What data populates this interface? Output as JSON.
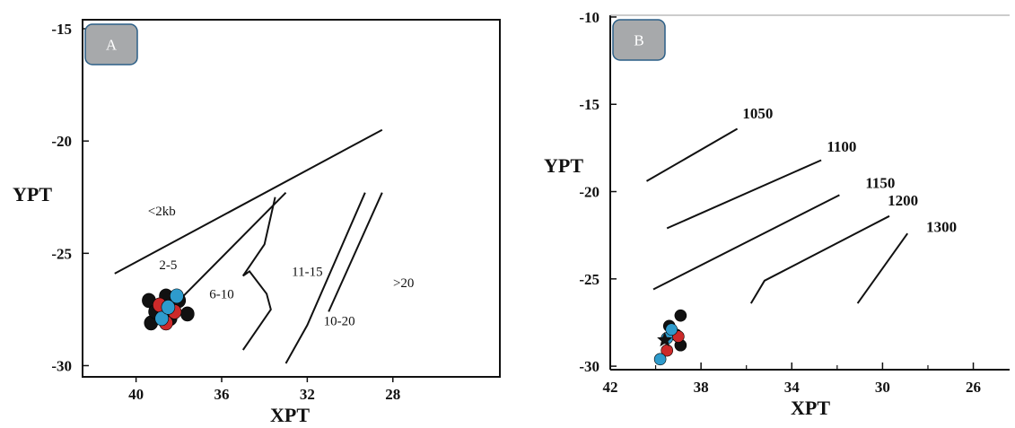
{
  "chart_data": [
    {
      "type": "scatter",
      "panel": "A",
      "xlabel": "XPT",
      "ylabel": "YPT",
      "xlim": [
        42.5,
        23
      ],
      "ylim": [
        -30.5,
        -14.6
      ],
      "x_ticks": [
        "40",
        "36",
        "32",
        "28"
      ],
      "y_ticks": [
        "-15",
        "-20",
        "-25",
        "-30"
      ],
      "field_lines": [
        {
          "points": [
            [
              41,
              -25.9
            ],
            [
              28.5,
              -19.5
            ]
          ]
        },
        {
          "points": [
            [
              38.1,
              -27.2
            ],
            [
              33,
              -22.3
            ]
          ]
        },
        {
          "points": [
            [
              35,
              -29.3
            ],
            [
              33.7,
              -27.5
            ],
            [
              33.9,
              -26.8
            ],
            [
              34.7,
              -25.8
            ],
            [
              35,
              -26
            ],
            [
              34,
              -24.6
            ],
            [
              33.5,
              -22.5
            ]
          ]
        },
        {
          "points": [
            [
              33,
              -29.9
            ],
            [
              32,
              -28.2
            ],
            [
              29.3,
              -22.3
            ]
          ]
        },
        {
          "points": [
            [
              31,
              -27.6
            ],
            [
              28.5,
              -22.3
            ]
          ]
        }
      ],
      "field_labels": [
        {
          "text": "<2kb",
          "x": 38.8,
          "y": -23.3
        },
        {
          "text": "2-5",
          "x": 38.5,
          "y": -25.7
        },
        {
          "text": "6-10",
          "x": 36,
          "y": -27
        },
        {
          "text": "11-15",
          "x": 32,
          "y": -26
        },
        {
          "text": "10-20",
          "x": 30.5,
          "y": -28.2
        },
        {
          "text": ">20",
          "x": 27.5,
          "y": -26.5
        }
      ],
      "series": [
        {
          "color": "#111111",
          "points": [
            [
              39.4,
              -27.1
            ],
            [
              38.6,
              -26.9
            ],
            [
              38,
              -27.1
            ],
            [
              39.3,
              -28.1
            ],
            [
              38.4,
              -27.9
            ],
            [
              37.6,
              -27.7
            ],
            [
              39.1,
              -27.6
            ]
          ]
        },
        {
          "color": "#cc2a2a",
          "points": [
            [
              38.9,
              -27.3
            ],
            [
              38.6,
              -28.1
            ],
            [
              38.2,
              -27.6
            ]
          ]
        },
        {
          "color": "#2e9bcc",
          "points": [
            [
              38.1,
              -26.9
            ],
            [
              38.8,
              -27.9
            ],
            [
              38.5,
              -27.4
            ]
          ]
        }
      ],
      "badge": "A"
    },
    {
      "type": "scatter",
      "panel": "B",
      "xlabel": "XPT",
      "ylabel": "YPT",
      "xlim": [
        42,
        24.4
      ],
      "ylim": [
        -30.2,
        -9.9
      ],
      "x_ticks": [
        "42",
        "38",
        "34",
        "30",
        "26"
      ],
      "y_ticks": [
        "-10",
        "-15",
        "-20",
        "-25",
        "-30"
      ],
      "isotherms": [
        {
          "label": "1050",
          "points": [
            [
              40.4,
              -19.4
            ],
            [
              36.4,
              -16.4
            ]
          ]
        },
        {
          "label": "1100",
          "points": [
            [
              39.5,
              -22.1
            ],
            [
              32.7,
              -18.2
            ]
          ]
        },
        {
          "label": "1150",
          "points": [
            [
              40.1,
              -25.6
            ],
            [
              31.9,
              -20.2
            ]
          ]
        },
        {
          "label": "1200",
          "points": [
            [
              35.8,
              -26.4
            ],
            [
              35.2,
              -25.1
            ],
            [
              29.7,
              -21.4
            ]
          ]
        },
        {
          "label": "1300",
          "points": [
            [
              31.1,
              -26.4
            ],
            [
              28.9,
              -22.4
            ]
          ]
        }
      ],
      "isotherm_labels": [
        {
          "text": "1050",
          "x": 35.5,
          "y": -15.8
        },
        {
          "text": "1100",
          "x": 31.8,
          "y": -17.7
        },
        {
          "text": "1150",
          "x": 30.1,
          "y": -19.8
        },
        {
          "text": "1200",
          "x": 29.1,
          "y": -20.8
        },
        {
          "text": "1300",
          "x": 27.4,
          "y": -22.3
        }
      ],
      "series": [
        {
          "color": "#111111",
          "points": [
            [
              38.9,
              -27.1
            ],
            [
              39.4,
              -27.7
            ],
            [
              38.9,
              -28.8
            ],
            [
              39.1,
              -28.2
            ]
          ]
        },
        {
          "color": "#cc2a2a",
          "points": [
            [
              39,
              -28.3
            ],
            [
              39.5,
              -29.1
            ]
          ]
        },
        {
          "color": "#2e9bcc",
          "points": [
            [
              39.5,
              -28.4
            ],
            [
              39.8,
              -29.6
            ],
            [
              39.3,
              -27.9
            ]
          ]
        }
      ],
      "star": {
        "x": 39.6,
        "y": -28.5
      },
      "badge": "B"
    }
  ],
  "colors": {
    "badge_fill": "#a7a9ab",
    "badge_stroke": "#2b5f87"
  }
}
